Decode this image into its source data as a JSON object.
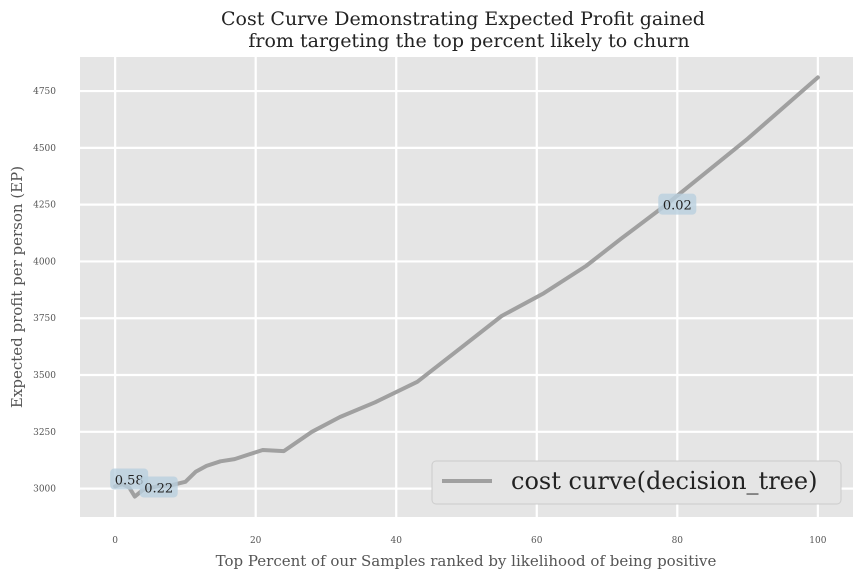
{
  "chart_data": {
    "type": "line",
    "title_line1": "Cost Curve Demonstrating Expected Profit gained",
    "title_line2": "from targeting the top percent likely to churn",
    "xlabel": "Top Percent of our Samples ranked by likelihood of being positive",
    "ylabel": "Expected profit per person (EP)",
    "xlim": [
      -5,
      105
    ],
    "ylim": [
      2875,
      4900
    ],
    "x_ticks": [
      0,
      20,
      40,
      60,
      80,
      100
    ],
    "y_ticks": [
      3000,
      3250,
      3500,
      3750,
      4000,
      4250,
      4500,
      4750
    ],
    "grid": true,
    "legend_position": "lower-right",
    "colors": {
      "series": "#a0a0a0",
      "background": "#e5e5e5",
      "grid": "#ffffff",
      "annotation_box": "#b9cfdf"
    },
    "series": [
      {
        "name": "cost curve(decision_tree)",
        "x": [
          0,
          1,
          2,
          2.8,
          4,
          6,
          8,
          10,
          11.5,
          13,
          15,
          17,
          19,
          21,
          24,
          28,
          32,
          37,
          43,
          49,
          55,
          61,
          67,
          72,
          78,
          84,
          90,
          95,
          100
        ],
        "y": [
          3010,
          3020,
          3005,
          2965,
          2995,
          3010,
          3015,
          3030,
          3075,
          3100,
          3120,
          3130,
          3150,
          3170,
          3165,
          3250,
          3315,
          3380,
          3470,
          3615,
          3760,
          3860,
          3980,
          4100,
          4240,
          4390,
          4540,
          4675,
          4810
        ]
      }
    ],
    "annotations": [
      {
        "text": "0.58",
        "x": 2,
        "y": 3040
      },
      {
        "text": "0.22",
        "x": 6.2,
        "y": 3005
      },
      {
        "text": "0.02",
        "x": 80,
        "y": 4250
      }
    ]
  }
}
